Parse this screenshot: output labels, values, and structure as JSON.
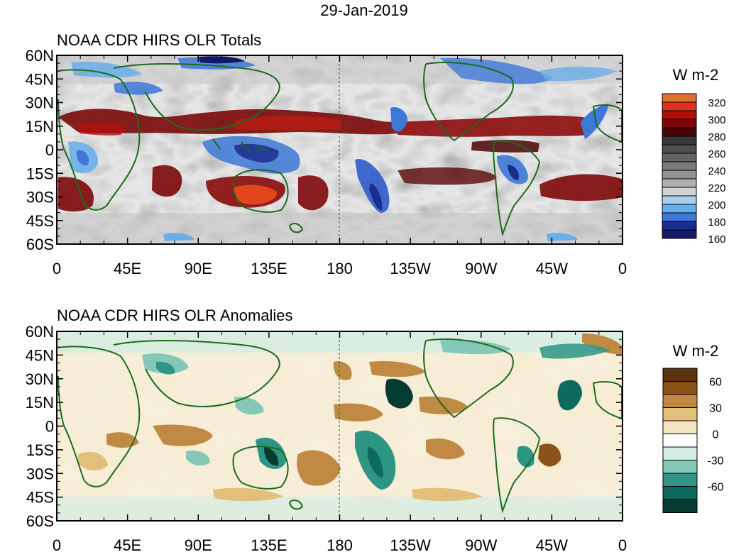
{
  "header": {
    "date": "29-Jan-2019"
  },
  "panels": [
    {
      "title": "NOAA CDR HIRS OLR Totals",
      "units": "W m-2",
      "lat_labels": [
        "60N",
        "45N",
        "30N",
        "15N",
        "0",
        "15S",
        "30S",
        "45S",
        "60S"
      ],
      "lon_labels": [
        "0",
        "45E",
        "90E",
        "135E",
        "180",
        "135W",
        "90W",
        "45W",
        "0"
      ],
      "colorbar": {
        "labels": [
          "320",
          "300",
          "280",
          "260",
          "240",
          "220",
          "200",
          "180",
          "160"
        ],
        "colors": [
          "#e0702a",
          "#e0301a",
          "#b00e0c",
          "#7c0608",
          "#4a0404",
          "#383838",
          "#4e4e4e",
          "#646464",
          "#7a7a7a",
          "#929292",
          "#b0b0b0",
          "#d2d2d2",
          "#a8d0ee",
          "#6aaee8",
          "#3d78d8",
          "#1c2e8c",
          "#141a68"
        ]
      }
    },
    {
      "title": "NOAA CDR HIRS OLR Anomalies",
      "units": "W m-2",
      "lat_labels": [
        "60N",
        "45N",
        "30N",
        "15N",
        "0",
        "15S",
        "30S",
        "45S",
        "60S"
      ],
      "lon_labels": [
        "0",
        "45E",
        "90E",
        "135E",
        "180",
        "135W",
        "90W",
        "45W",
        "0"
      ],
      "colorbar": {
        "labels": [
          "60",
          "30",
          "0",
          "-30",
          "-60"
        ],
        "colors": [
          "#5a3510",
          "#8c5318",
          "#c08a44",
          "#e2c07c",
          "#f4e4c0",
          "#ffffff",
          "#d2ece4",
          "#86c8b8",
          "#2e9484",
          "#0e6a5e",
          "#053c32"
        ]
      }
    }
  ],
  "coast_color": "#1e6b1e"
}
